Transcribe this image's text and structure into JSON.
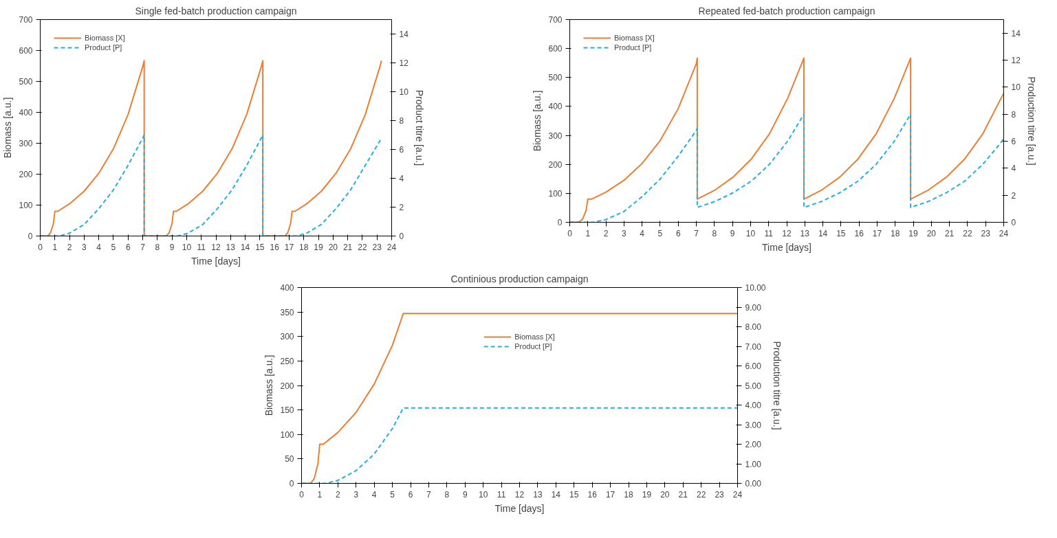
{
  "chart_data": [
    {
      "type": "line",
      "title": "Single fed-batch production campaign",
      "xlabel": "Time [days]",
      "ylabel": "Biomass [a.u.]",
      "y2label": "Product titre [a.u.]",
      "xlim": [
        0,
        24
      ],
      "xticks": [
        0,
        1,
        2,
        3,
        4,
        5,
        6,
        7,
        8,
        9,
        10,
        11,
        12,
        13,
        14,
        15,
        16,
        17,
        18,
        19,
        20,
        21,
        22,
        23,
        24
      ],
      "ylim": [
        0,
        700
      ],
      "yticks": [
        0,
        100,
        200,
        300,
        400,
        500,
        600,
        700
      ],
      "y2lim": [
        0,
        15
      ],
      "y2ticks": [
        0,
        2,
        4,
        6,
        8,
        10,
        12,
        14
      ],
      "grid": false,
      "legend": "top left",
      "marker": "none",
      "series": [
        {
          "name": "Biomass [X]",
          "color": "#ed7d31",
          "line_style": "solid",
          "x": [
            0,
            0.5,
            0.7,
            0.9,
            1.0,
            1.2,
            2,
            3,
            4,
            5,
            6,
            7,
            7.1,
            7.1,
            8.6,
            8.8,
            9.0,
            9.1,
            9.3,
            10.1,
            11.1,
            12.1,
            13.1,
            14.1,
            15.1,
            15.2,
            15.2,
            16.7,
            16.9,
            17.1,
            17.2,
            17.4,
            18.2,
            19.2,
            20.2,
            21.2,
            22.2,
            23.2,
            23.3
          ],
          "values": [
            0,
            0,
            10,
            40,
            80,
            80,
            104,
            145,
            203,
            282,
            393,
            548,
            567,
            0,
            0,
            10,
            40,
            80,
            80,
            104,
            145,
            203,
            282,
            393,
            548,
            567,
            0,
            0,
            10,
            40,
            80,
            80,
            104,
            145,
            203,
            282,
            393,
            548,
            567
          ]
        },
        {
          "name": "Product [P]",
          "color": "#1fb0e0",
          "line_style": "dashed",
          "axis": "y2",
          "x": [
            0,
            1.3,
            2,
            3,
            4,
            5,
            6,
            7,
            7.1,
            7.1,
            9.4,
            10.1,
            11.1,
            12.1,
            13.1,
            14.1,
            15.1,
            15.2,
            15.2,
            17.5,
            18.2,
            19.2,
            20.2,
            21.2,
            22.2,
            23.2,
            23.3
          ],
          "values": [
            0,
            0,
            0.2,
            0.8,
            1.9,
            3.2,
            4.9,
            6.8,
            7.0,
            0,
            0,
            0.2,
            0.8,
            1.9,
            3.2,
            4.9,
            6.8,
            7.0,
            0,
            0,
            0.2,
            0.8,
            1.9,
            3.2,
            4.9,
            6.6,
            6.8
          ]
        }
      ]
    },
    {
      "type": "line",
      "title": "Repeated fed-batch production campaign",
      "xlabel": "Time [days]",
      "ylabel": "Biomass [a.u.]",
      "y2label": "Production titre [a.u.]",
      "xlim": [
        0,
        24
      ],
      "xticks": [
        0,
        1,
        2,
        3,
        4,
        5,
        6,
        7,
        8,
        9,
        10,
        11,
        12,
        13,
        14,
        15,
        16,
        17,
        18,
        19,
        20,
        21,
        22,
        23,
        24
      ],
      "ylim": [
        0,
        700
      ],
      "yticks": [
        0,
        100,
        200,
        300,
        400,
        500,
        600,
        700
      ],
      "y2lim": [
        0,
        15
      ],
      "y2ticks": [
        0,
        2,
        4,
        6,
        8,
        10,
        12,
        14
      ],
      "grid": false,
      "legend": "top left",
      "marker": "none",
      "series": [
        {
          "name": "Biomass [X]",
          "color": "#ed7d31",
          "line_style": "solid",
          "x": [
            0,
            0.5,
            0.7,
            0.9,
            1.0,
            1.2,
            2,
            3,
            4,
            5,
            6,
            7,
            7.05,
            7.05,
            8.05,
            9.05,
            10.05,
            11.05,
            12.05,
            12.95,
            12.95,
            13.95,
            14.95,
            15.95,
            16.95,
            17.95,
            18.85,
            18.85,
            19.85,
            20.85,
            21.85,
            22.85,
            23.85,
            24
          ],
          "values": [
            0,
            0,
            10,
            40,
            80,
            80,
            104,
            145,
            203,
            282,
            393,
            548,
            567,
            80,
            112,
            157,
            219,
            306,
            428,
            567,
            80,
            112,
            157,
            219,
            306,
            428,
            567,
            80,
            112,
            157,
            219,
            306,
            428,
            445
          ]
        },
        {
          "name": "Product [P]",
          "color": "#1fb0e0",
          "line_style": "dashed",
          "axis": "y2",
          "x": [
            0,
            1.3,
            2,
            3,
            4,
            5,
            6,
            7,
            7.05,
            7.05,
            8.05,
            9.05,
            10.05,
            11.05,
            12.05,
            12.95,
            12.95,
            13.95,
            14.95,
            15.95,
            16.95,
            17.95,
            18.85,
            18.85,
            19.85,
            20.85,
            21.85,
            22.85,
            23.85,
            24
          ],
          "values": [
            0,
            0,
            0.2,
            0.8,
            1.9,
            3.2,
            4.9,
            6.8,
            6.95,
            1.1,
            1.55,
            2.2,
            3.05,
            4.3,
            6.0,
            8.0,
            1.1,
            1.55,
            2.2,
            3.05,
            4.3,
            6.0,
            8.0,
            1.1,
            1.55,
            2.2,
            3.05,
            4.3,
            5.9,
            6.2
          ]
        }
      ]
    },
    {
      "type": "line",
      "title": "Continious production campaign",
      "xlabel": "Time [days]",
      "ylabel": "Biomass [a.u.]",
      "y2label": "Production titre [a.u.]",
      "xlim": [
        0,
        24
      ],
      "xticks": [
        0,
        1,
        2,
        3,
        4,
        5,
        6,
        7,
        8,
        9,
        10,
        11,
        12,
        13,
        14,
        15,
        16,
        17,
        18,
        19,
        20,
        21,
        22,
        23,
        24
      ],
      "ylim": [
        0,
        400
      ],
      "yticks": [
        0,
        50,
        100,
        150,
        200,
        250,
        300,
        350,
        400
      ],
      "y2lim": [
        0,
        10
      ],
      "y2ticks": [
        {
          "value": 0,
          "label": "0.00"
        },
        {
          "value": 1,
          "label": "1.00"
        },
        {
          "value": 2,
          "label": "2.00"
        },
        {
          "value": 3,
          "label": "3.00"
        },
        {
          "value": 4,
          "label": "4.00"
        },
        {
          "value": 5,
          "label": "5.00"
        },
        {
          "value": 6,
          "label": "6.00"
        },
        {
          "value": 7,
          "label": "7.00"
        },
        {
          "value": 8,
          "label": "8.00"
        },
        {
          "value": 9,
          "label": "9.00"
        },
        {
          "value": 10,
          "label": "10.00"
        }
      ],
      "grid": false,
      "legend": "top",
      "marker": "none",
      "series": [
        {
          "name": "Biomass [X]",
          "color": "#ed7d31",
          "line_style": "solid",
          "x": [
            0,
            0.5,
            0.7,
            0.9,
            1.0,
            1.2,
            2,
            3,
            4,
            5,
            5.6,
            24
          ],
          "values": [
            0,
            0,
            10,
            40,
            80,
            80,
            104,
            145,
            203,
            282,
            347,
            347
          ]
        },
        {
          "name": "Product [P]",
          "color": "#1fb0e0",
          "line_style": "dashed",
          "axis": "y2",
          "x": [
            0,
            1.3,
            2,
            3,
            4,
            5,
            5.6,
            24
          ],
          "values": [
            0,
            0,
            0.15,
            0.65,
            1.5,
            2.8,
            3.85,
            3.85
          ]
        }
      ]
    }
  ]
}
